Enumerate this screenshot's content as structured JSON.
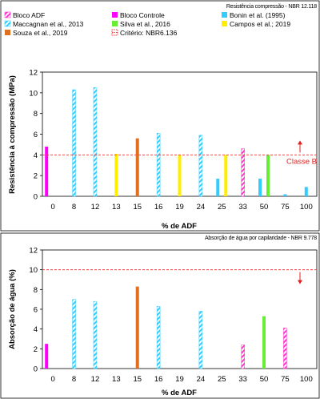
{
  "legend": [
    {
      "label": "Bloco ADF",
      "color": "#ff33cc",
      "hatch": true
    },
    {
      "label": "Bloco Controle",
      "color": "#ff00ff",
      "hatch": false
    },
    {
      "label": "Bonin et al. (1995)",
      "color": "#33ccff",
      "hatch": false
    },
    {
      "label": "Maccagnan et al., 2013",
      "color": "#33ccff",
      "hatch": true
    },
    {
      "label": "Silva et al., 2016",
      "color": "#66ee33",
      "hatch": false
    },
    {
      "label": "Campos et al.; 2019",
      "color": "#ffee00",
      "hatch": false
    },
    {
      "label": "Souza et al., 2019",
      "color": "#e07020",
      "hatch": false
    },
    {
      "label": "Critério: NBR6.136",
      "color": "#ff4040",
      "dashed": true
    }
  ],
  "chart_data": [
    {
      "type": "bar",
      "note": "Resistência compressão - NBR 12.118",
      "xlabel": "% de ADF",
      "ylabel": "Resistência à compressão (MPa)",
      "ylim": [
        0,
        12
      ],
      "yticks": [
        "0",
        "2",
        "4",
        "6",
        "8",
        "10",
        "12"
      ],
      "categories": [
        "0",
        "8",
        "12",
        "13",
        "15",
        "16",
        "19",
        "24",
        "25",
        "33",
        "50",
        "75",
        "100"
      ],
      "threshold": {
        "value": 4,
        "label": "Classe B",
        "color": "#ff4040"
      },
      "bars": [
        {
          "cat": "0",
          "series": "Bloco Controle",
          "value": 4.8
        },
        {
          "cat": "8",
          "series": "Maccagnan et al., 2013",
          "value": 10.3
        },
        {
          "cat": "12",
          "series": "Maccagnan et al., 2013",
          "value": 10.5
        },
        {
          "cat": "13",
          "series": "Campos et al.; 2019",
          "value": 4.1
        },
        {
          "cat": "15",
          "series": "Souza et al., 2019",
          "value": 5.6
        },
        {
          "cat": "16",
          "series": "Maccagnan et al., 2013",
          "value": 6.1
        },
        {
          "cat": "19",
          "series": "Campos et al.; 2019",
          "value": 4.0
        },
        {
          "cat": "24",
          "series": "Maccagnan et al., 2013",
          "value": 5.9
        },
        {
          "cat": "25",
          "series": "Bonin et al. (1995)",
          "value": 1.7
        },
        {
          "cat": "25",
          "series": "Campos et al.; 2019",
          "value": 4.0
        },
        {
          "cat": "33",
          "series": "Bloco ADF",
          "value": 4.6
        },
        {
          "cat": "50",
          "series": "Bonin et al. (1995)",
          "value": 1.7
        },
        {
          "cat": "50",
          "series": "Silva et al., 2016",
          "value": 4.0
        },
        {
          "cat": "75",
          "series": "Bonin et al. (1995)",
          "value": 0.2
        },
        {
          "cat": "100",
          "series": "Bonin et al. (1995)",
          "value": 0.9
        }
      ]
    },
    {
      "type": "bar",
      "note": "Absorção de água por capilaridade - NBR 9.778",
      "xlabel": "% de ADF",
      "ylabel": "Absorção de água (%)",
      "ylim": [
        0,
        12
      ],
      "yticks": [
        "0",
        "2",
        "4",
        "6",
        "8",
        "10",
        "12"
      ],
      "categories": [
        "0",
        "8",
        "12",
        "13",
        "15",
        "16",
        "19",
        "24",
        "25",
        "33",
        "50",
        "75",
        "100"
      ],
      "threshold": {
        "value": 10,
        "label": "",
        "color": "#ff4040"
      },
      "bars": [
        {
          "cat": "0",
          "series": "Bloco Controle",
          "value": 2.5
        },
        {
          "cat": "8",
          "series": "Maccagnan et al., 2013",
          "value": 7.0
        },
        {
          "cat": "12",
          "series": "Maccagnan et al., 2013",
          "value": 6.8
        },
        {
          "cat": "15",
          "series": "Souza et al., 2019",
          "value": 8.3
        },
        {
          "cat": "16",
          "series": "Maccagnan et al., 2013",
          "value": 6.3
        },
        {
          "cat": "24",
          "series": "Maccagnan et al., 2013",
          "value": 5.8
        },
        {
          "cat": "33",
          "series": "Bloco ADF",
          "value": 2.4
        },
        {
          "cat": "50",
          "series": "Silva et al., 2016",
          "value": 5.3
        },
        {
          "cat": "75",
          "series": "Bloco ADF",
          "value": 4.1
        }
      ]
    }
  ]
}
